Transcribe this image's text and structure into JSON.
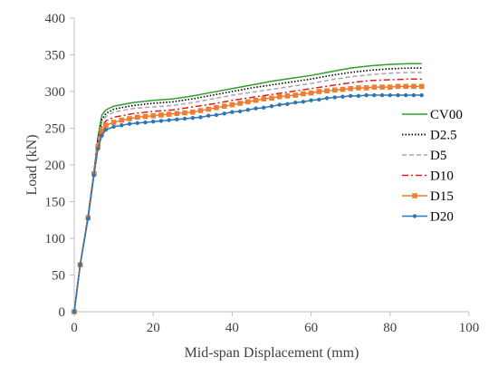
{
  "chart_data": {
    "type": "line",
    "title": "",
    "xlabel": "Mid-span Displacement (mm)",
    "ylabel": "Load (kN)",
    "xlim": [
      0,
      100
    ],
    "ylim": [
      0,
      400
    ],
    "x_ticks": [
      0,
      20,
      40,
      60,
      80,
      100
    ],
    "y_ticks": [
      0,
      50,
      100,
      150,
      200,
      250,
      300,
      350,
      400
    ],
    "grid": false,
    "legend_position": "right",
    "series": [
      {
        "name": "CV00",
        "color": "#2ca02c",
        "dash": "solid",
        "marker": "none",
        "points": [
          [
            0,
            0
          ],
          [
            1.5,
            64
          ],
          [
            3.5,
            130
          ],
          [
            5,
            190
          ],
          [
            6,
            238
          ],
          [
            7,
            268
          ],
          [
            8,
            275
          ],
          [
            10,
            280
          ],
          [
            15,
            285
          ],
          [
            20,
            288
          ],
          [
            25,
            290
          ],
          [
            30,
            294
          ],
          [
            35,
            299
          ],
          [
            40,
            304
          ],
          [
            45,
            309
          ],
          [
            50,
            314
          ],
          [
            55,
            318
          ],
          [
            60,
            322
          ],
          [
            65,
            327
          ],
          [
            70,
            332
          ],
          [
            75,
            335
          ],
          [
            80,
            337
          ],
          [
            85,
            338
          ],
          [
            88,
            338
          ]
        ]
      },
      {
        "name": "D2.5",
        "color": "#000000",
        "dash": "dotted",
        "marker": "none",
        "points": [
          [
            0,
            0
          ],
          [
            1.5,
            64
          ],
          [
            3.5,
            130
          ],
          [
            5,
            190
          ],
          [
            6,
            235
          ],
          [
            7,
            262
          ],
          [
            8,
            270
          ],
          [
            10,
            276
          ],
          [
            15,
            281
          ],
          [
            20,
            284
          ],
          [
            25,
            286
          ],
          [
            30,
            290
          ],
          [
            35,
            295
          ],
          [
            40,
            300
          ],
          [
            45,
            305
          ],
          [
            50,
            309
          ],
          [
            55,
            313
          ],
          [
            60,
            317
          ],
          [
            65,
            322
          ],
          [
            70,
            326
          ],
          [
            75,
            329
          ],
          [
            80,
            331
          ],
          [
            85,
            332
          ],
          [
            88,
            332
          ]
        ]
      },
      {
        "name": "D5",
        "color": "#a6a6a6",
        "dash": "dashed",
        "marker": "none",
        "points": [
          [
            0,
            0
          ],
          [
            1.5,
            64
          ],
          [
            3.5,
            130
          ],
          [
            5,
            190
          ],
          [
            6,
            232
          ],
          [
            7,
            258
          ],
          [
            8,
            266
          ],
          [
            10,
            272
          ],
          [
            15,
            277
          ],
          [
            20,
            279
          ],
          [
            25,
            281
          ],
          [
            30,
            285
          ],
          [
            35,
            290
          ],
          [
            40,
            295
          ],
          [
            45,
            299
          ],
          [
            50,
            303
          ],
          [
            55,
            307
          ],
          [
            60,
            311
          ],
          [
            65,
            316
          ],
          [
            70,
            320
          ],
          [
            75,
            323
          ],
          [
            80,
            325
          ],
          [
            85,
            326
          ],
          [
            88,
            326
          ]
        ]
      },
      {
        "name": "D10",
        "color": "#e31a1c",
        "dash": "dashdot",
        "marker": "none",
        "points": [
          [
            0,
            0
          ],
          [
            1.5,
            64
          ],
          [
            3.5,
            130
          ],
          [
            5,
            190
          ],
          [
            6,
            228
          ],
          [
            7,
            252
          ],
          [
            8,
            260
          ],
          [
            10,
            265
          ],
          [
            15,
            270
          ],
          [
            20,
            273
          ],
          [
            25,
            275
          ],
          [
            30,
            279
          ],
          [
            35,
            283
          ],
          [
            40,
            288
          ],
          [
            45,
            292
          ],
          [
            50,
            296
          ],
          [
            55,
            300
          ],
          [
            60,
            304
          ],
          [
            65,
            308
          ],
          [
            70,
            312
          ],
          [
            75,
            315
          ],
          [
            80,
            316
          ],
          [
            85,
            317
          ],
          [
            88,
            317
          ]
        ]
      },
      {
        "name": "D15",
        "color": "#ed7d31",
        "dash": "solid",
        "marker": "square",
        "points": [
          [
            0,
            0
          ],
          [
            1.5,
            64
          ],
          [
            3.5,
            128
          ],
          [
            5,
            188
          ],
          [
            6,
            225
          ],
          [
            7,
            246
          ],
          [
            8,
            254
          ],
          [
            10,
            258
          ],
          [
            12,
            261
          ],
          [
            14,
            263
          ],
          [
            16,
            265
          ],
          [
            18,
            266
          ],
          [
            20,
            267
          ],
          [
            22,
            268
          ],
          [
            24,
            269
          ],
          [
            26,
            270
          ],
          [
            28,
            271
          ],
          [
            30,
            272
          ],
          [
            32,
            274
          ],
          [
            34,
            276
          ],
          [
            36,
            278
          ],
          [
            38,
            280
          ],
          [
            40,
            282
          ],
          [
            42,
            284
          ],
          [
            44,
            286
          ],
          [
            46,
            288
          ],
          [
            48,
            290
          ],
          [
            50,
            291
          ],
          [
            52,
            293
          ],
          [
            54,
            294
          ],
          [
            56,
            295
          ],
          [
            58,
            297
          ],
          [
            60,
            298
          ],
          [
            62,
            300
          ],
          [
            64,
            301
          ],
          [
            66,
            302
          ],
          [
            68,
            303
          ],
          [
            70,
            304
          ],
          [
            72,
            305
          ],
          [
            74,
            305
          ],
          [
            76,
            306
          ],
          [
            78,
            306
          ],
          [
            80,
            306
          ],
          [
            82,
            307
          ],
          [
            84,
            307
          ],
          [
            86,
            307
          ],
          [
            88,
            307
          ]
        ]
      },
      {
        "name": "D20",
        "color": "#2e75b6",
        "dash": "solid",
        "marker": "circle",
        "points": [
          [
            0,
            0
          ],
          [
            1.5,
            64
          ],
          [
            3.5,
            127
          ],
          [
            5,
            186
          ],
          [
            6,
            222
          ],
          [
            7,
            240
          ],
          [
            8,
            248
          ],
          [
            10,
            252
          ],
          [
            12,
            254
          ],
          [
            14,
            256
          ],
          [
            16,
            257
          ],
          [
            18,
            258
          ],
          [
            20,
            259
          ],
          [
            22,
            260
          ],
          [
            24,
            261
          ],
          [
            26,
            262
          ],
          [
            28,
            263
          ],
          [
            30,
            264
          ],
          [
            32,
            265
          ],
          [
            34,
            267
          ],
          [
            36,
            268
          ],
          [
            38,
            270
          ],
          [
            40,
            272
          ],
          [
            42,
            273
          ],
          [
            44,
            275
          ],
          [
            46,
            277
          ],
          [
            48,
            278
          ],
          [
            50,
            280
          ],
          [
            52,
            282
          ],
          [
            54,
            283
          ],
          [
            56,
            285
          ],
          [
            58,
            286
          ],
          [
            60,
            288
          ],
          [
            62,
            289
          ],
          [
            64,
            291
          ],
          [
            66,
            292
          ],
          [
            68,
            293
          ],
          [
            70,
            294
          ],
          [
            72,
            294
          ],
          [
            74,
            295
          ],
          [
            76,
            295
          ],
          [
            78,
            295
          ],
          [
            80,
            295
          ],
          [
            82,
            295
          ],
          [
            84,
            295
          ],
          [
            86,
            295
          ],
          [
            88,
            295
          ]
        ]
      }
    ]
  }
}
